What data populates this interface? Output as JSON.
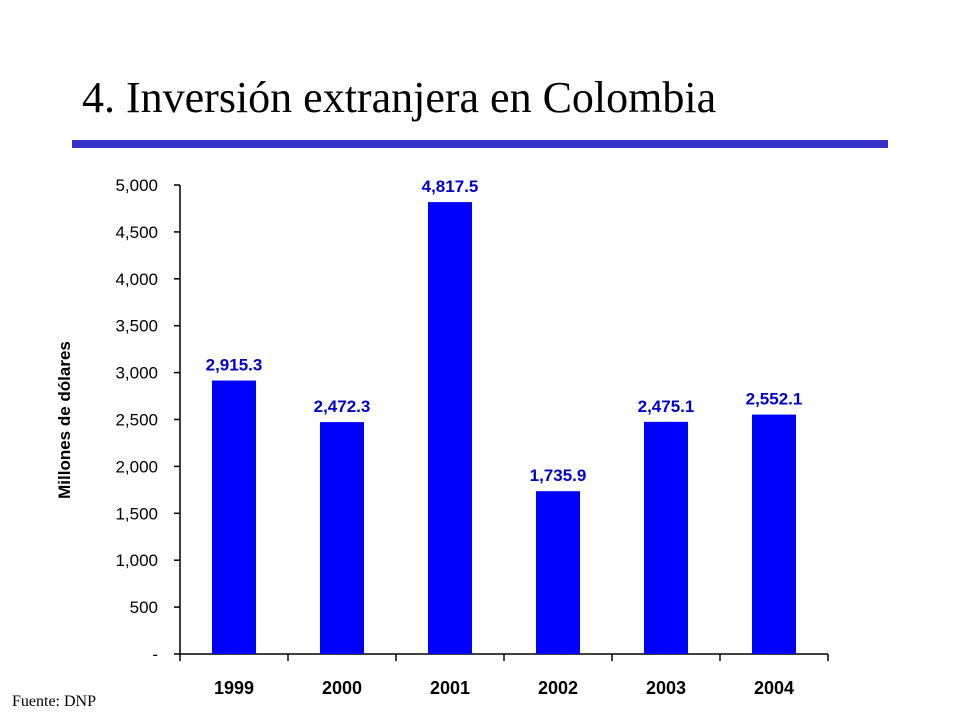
{
  "slide": {
    "title": "4. Inversión extranjera en Colombia",
    "source": "Fuente: DNP",
    "accent_color": "#3333cc"
  },
  "chart_data": {
    "type": "bar",
    "title": "",
    "xlabel": "",
    "ylabel": "Millones de dólares",
    "categories": [
      "1999",
      "2000",
      "2001",
      "2002",
      "2003",
      "2004"
    ],
    "values": [
      2915.3,
      2472.3,
      4817.5,
      1735.9,
      2475.1,
      2552.1
    ],
    "data_labels": [
      "2,915.3",
      "2,472.3",
      "4,817.5",
      "1,735.9",
      "2,475.1",
      "2,552.1"
    ],
    "yticks": [
      {
        "value": 0,
        "label": "-"
      },
      {
        "value": 500,
        "label": "500"
      },
      {
        "value": 1000,
        "label": "1,000"
      },
      {
        "value": 1500,
        "label": "1,500"
      },
      {
        "value": 2000,
        "label": "2,000"
      },
      {
        "value": 2500,
        "label": "2,500"
      },
      {
        "value": 3000,
        "label": "3,000"
      },
      {
        "value": 3500,
        "label": "3,500"
      },
      {
        "value": 4000,
        "label": "4,000"
      },
      {
        "value": 4500,
        "label": "4,500"
      },
      {
        "value": 5000,
        "label": "5,000"
      }
    ],
    "ylim": [
      0,
      5000
    ],
    "grid": false,
    "legend": "none",
    "bar_color": "#0000ff",
    "label_color": "#0000cc"
  }
}
